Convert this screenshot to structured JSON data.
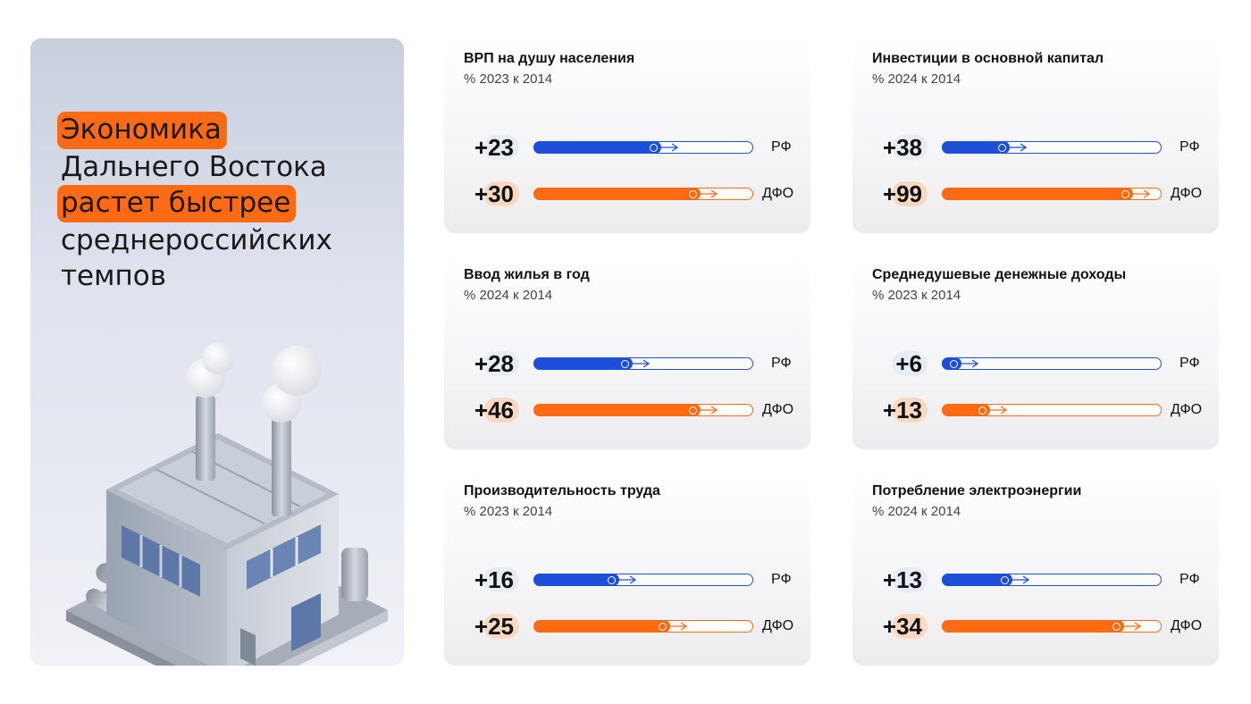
{
  "hero": {
    "lines": [
      {
        "text": "Экономика",
        "highlight": true
      },
      {
        "text": "Дальнего Востока",
        "highlight": false
      },
      {
        "text": "растет быстрее",
        "highlight": true
      },
      {
        "text": "среднероссийских",
        "highlight": false
      },
      {
        "text": "темпов",
        "highlight": false
      }
    ],
    "image": "factory-illustration"
  },
  "colors": {
    "rf": "#1e4fd8",
    "dfo": "#ff6a13",
    "highlight": "#ff6a13"
  },
  "chart_data": [
    {
      "type": "bar",
      "title": "ВРП на душу населения",
      "subtitle": "% 2023 к 2014",
      "series": [
        {
          "name": "РФ",
          "label": "+23",
          "value": 23
        },
        {
          "name": "ДФО",
          "label": "+30",
          "value": 30
        }
      ],
      "fill_fraction": [
        0.58,
        0.76
      ]
    },
    {
      "type": "bar",
      "title": "Инвестиции в основной капитал",
      "subtitle": "% 2024 к 2014",
      "series": [
        {
          "name": "РФ",
          "label": "+38",
          "value": 38
        },
        {
          "name": "ДФО",
          "label": "+99",
          "value": 99
        }
      ],
      "fill_fraction": [
        0.31,
        0.87
      ]
    },
    {
      "type": "bar",
      "title": "Ввод жилья в год",
      "subtitle": "% 2024 к 2014",
      "series": [
        {
          "name": "РФ",
          "label": "+28",
          "value": 28
        },
        {
          "name": "ДФО",
          "label": "+46",
          "value": 46
        }
      ],
      "fill_fraction": [
        0.45,
        0.76
      ]
    },
    {
      "type": "bar",
      "title": "Среднедушевые денежные доходы",
      "subtitle": "% 2023 к 2014",
      "series": [
        {
          "name": "РФ",
          "label": "+6",
          "value": 6
        },
        {
          "name": "ДФО",
          "label": "+13",
          "value": 13
        }
      ],
      "fill_fraction": [
        0.09,
        0.22
      ]
    },
    {
      "type": "bar",
      "title": "Производительность труда",
      "subtitle": "% 2023 к 2014",
      "series": [
        {
          "name": "РФ",
          "label": "+16",
          "value": 16
        },
        {
          "name": "ДФО",
          "label": "+25",
          "value": 25
        }
      ],
      "fill_fraction": [
        0.39,
        0.62
      ]
    },
    {
      "type": "bar",
      "title": "Потребление электроэнергии",
      "subtitle": "% 2024 к 2014",
      "series": [
        {
          "name": "РФ",
          "label": "+13",
          "value": 13
        },
        {
          "name": "ДФО",
          "label": "+34",
          "value": 34
        }
      ],
      "fill_fraction": [
        0.32,
        0.83
      ]
    }
  ]
}
